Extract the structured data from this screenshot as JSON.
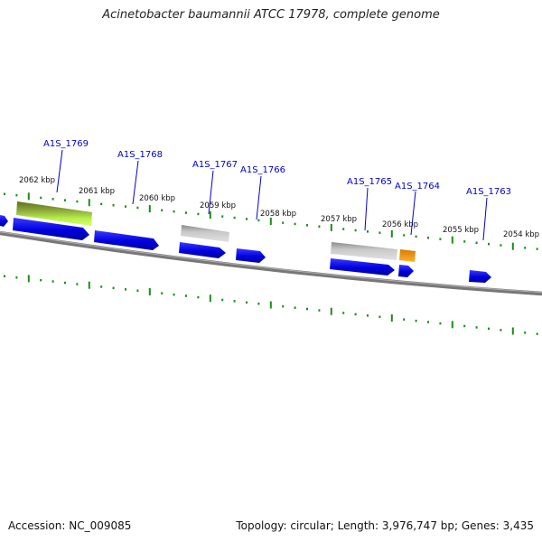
{
  "title": "Acinetobacter baumannii ATCC 17978, complete genome",
  "footer": {
    "accession": "Accession: NC_009085",
    "stats": "Topology: circular; Length: 3,976,747 bp; Genes: 3,435"
  },
  "colors": {
    "backbone": "#808080",
    "tick": "#1a8c1a",
    "gene": "#0000ee",
    "gene_label": "#0000cc",
    "gray_feature": "#bcbcbc",
    "orange_feature": "#ff9900",
    "green_feature": "#8fbf3f"
  },
  "kbp_labels": [
    "2062 kbp",
    "2061 kbp",
    "2060 kbp",
    "2059 kbp",
    "2058 kbp",
    "2057 kbp",
    "2056 kbp",
    "2055 kbp",
    "2054 kbp"
  ],
  "gene_labels": [
    "A1S_1769",
    "A1S_1768",
    "A1S_1767",
    "A1S_1766",
    "A1S_1765",
    "A1S_1764",
    "A1S_1763"
  ]
}
